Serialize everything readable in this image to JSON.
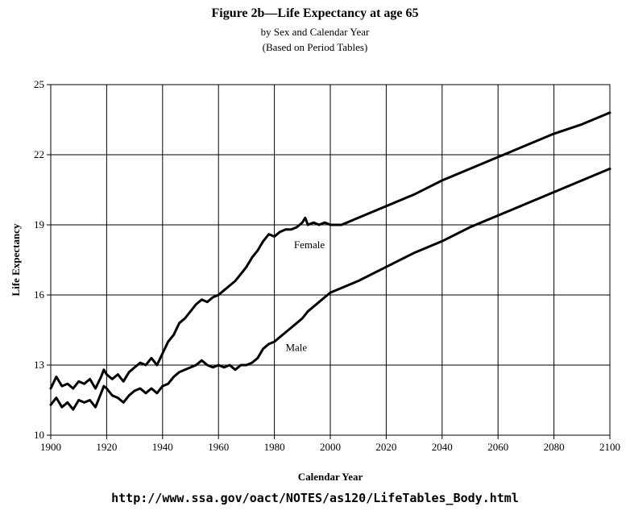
{
  "chart_data": {
    "type": "line",
    "title": "Figure 2b—Life Expectancy at age 65",
    "subtitle": "by Sex and Calendar Year",
    "subtitle2": "(Based on Period Tables)",
    "xlabel": "Calendar Year",
    "ylabel": "Life Expectancy",
    "xlim": [
      1900,
      2100
    ],
    "ylim": [
      10,
      25
    ],
    "xticks": [
      "1900",
      "1920",
      "1940",
      "1960",
      "1980",
      "2000",
      "2020",
      "2040",
      "2060",
      "2080",
      "2100"
    ],
    "yticks": [
      "10",
      "13",
      "16",
      "19",
      "22",
      "25"
    ],
    "grid": true,
    "legend": "none",
    "series": [
      {
        "name": "Female",
        "x": [
          1900,
          1902,
          1904,
          1906,
          1908,
          1910,
          1912,
          1914,
          1916,
          1918,
          1919,
          1920,
          1922,
          1924,
          1926,
          1928,
          1930,
          1932,
          1934,
          1936,
          1938,
          1940,
          1942,
          1944,
          1946,
          1948,
          1950,
          1952,
          1954,
          1956,
          1958,
          1960,
          1962,
          1964,
          1966,
          1968,
          1970,
          1972,
          1974,
          1976,
          1978,
          1980,
          1982,
          1984,
          1986,
          1988,
          1990,
          1991,
          1992,
          1994,
          1996,
          1998,
          2000,
          2002,
          2004,
          2006,
          2010,
          2020,
          2030,
          2040,
          2050,
          2060,
          2070,
          2080,
          2090,
          2100
        ],
        "y": [
          12.0,
          12.5,
          12.1,
          12.2,
          12.0,
          12.3,
          12.2,
          12.4,
          12.0,
          12.5,
          12.8,
          12.6,
          12.4,
          12.6,
          12.3,
          12.7,
          12.9,
          13.1,
          13.0,
          13.3,
          13.0,
          13.5,
          14.0,
          14.3,
          14.8,
          15.0,
          15.3,
          15.6,
          15.8,
          15.7,
          15.9,
          16.0,
          16.2,
          16.4,
          16.6,
          16.9,
          17.2,
          17.6,
          17.9,
          18.3,
          18.6,
          18.5,
          18.7,
          18.8,
          18.8,
          18.9,
          19.1,
          19.3,
          19.0,
          19.1,
          19.0,
          19.1,
          19.0,
          19.0,
          19.0,
          19.1,
          19.3,
          19.8,
          20.3,
          20.9,
          21.4,
          21.9,
          22.4,
          22.9,
          23.3,
          23.8
        ]
      },
      {
        "name": "Male",
        "x": [
          1900,
          1902,
          1904,
          1906,
          1908,
          1910,
          1912,
          1914,
          1916,
          1918,
          1919,
          1920,
          1922,
          1924,
          1926,
          1928,
          1930,
          1932,
          1934,
          1936,
          1938,
          1940,
          1942,
          1944,
          1946,
          1948,
          1950,
          1952,
          1954,
          1956,
          1958,
          1960,
          1962,
          1964,
          1966,
          1968,
          1970,
          1972,
          1974,
          1976,
          1978,
          1980,
          1982,
          1984,
          1986,
          1988,
          1990,
          1992,
          1994,
          1996,
          1998,
          2000,
          2010,
          2020,
          2030,
          2040,
          2050,
          2060,
          2070,
          2080,
          2090,
          2100
        ],
        "y": [
          11.3,
          11.6,
          11.2,
          11.4,
          11.1,
          11.5,
          11.4,
          11.5,
          11.2,
          11.8,
          12.1,
          12.0,
          11.7,
          11.6,
          11.4,
          11.7,
          11.9,
          12.0,
          11.8,
          12.0,
          11.8,
          12.1,
          12.2,
          12.5,
          12.7,
          12.8,
          12.9,
          13.0,
          13.2,
          13.0,
          12.9,
          13.0,
          12.9,
          13.0,
          12.8,
          13.0,
          13.0,
          13.1,
          13.3,
          13.7,
          13.9,
          14.0,
          14.2,
          14.4,
          14.6,
          14.8,
          15.0,
          15.3,
          15.5,
          15.7,
          15.9,
          16.1,
          16.6,
          17.2,
          17.8,
          18.3,
          18.9,
          19.4,
          19.9,
          20.4,
          20.9,
          21.4
        ]
      }
    ],
    "annotations": [
      {
        "text": "Female",
        "x": 1987,
        "y": 18.0
      },
      {
        "text": "Male",
        "x": 1984,
        "y": 13.6
      }
    ],
    "source_url": "http://www.ssa.gov/oact/NOTES/as120/LifeTables_Body.html"
  }
}
